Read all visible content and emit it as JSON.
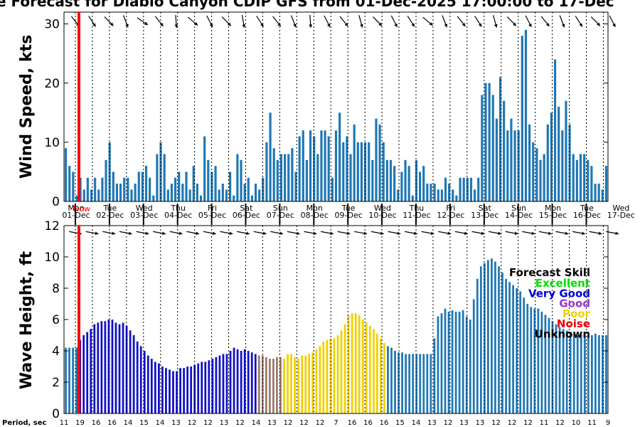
{
  "title": "e Forecast for Diablo Canyon CDIP GFS from 01-Dec-2025 17:00:00 to 17-Dec",
  "wind_panel": {
    "ylabel": "Wind Speed, kts",
    "yticks": [
      "0",
      "10",
      "20",
      "30"
    ]
  },
  "wave_panel": {
    "ylabel": "Wave Height, ft",
    "yticks": [
      "0",
      "2",
      "4",
      "6",
      "8",
      "10",
      "12"
    ]
  },
  "days": [
    {
      "name": "Mon",
      "date": "01-Dec"
    },
    {
      "name": "Tue",
      "date": "02-Dec"
    },
    {
      "name": "Wed",
      "date": "03-Dec"
    },
    {
      "name": "Thu",
      "date": "04-Dec"
    },
    {
      "name": "Fri",
      "date": "05-Dec"
    },
    {
      "name": "Sat",
      "date": "06-Dec"
    },
    {
      "name": "Sun",
      "date": "07-Dec"
    },
    {
      "name": "Mon",
      "date": "08-Dec"
    },
    {
      "name": "Tue",
      "date": "09-Dec"
    },
    {
      "name": "Wed",
      "date": "10-Dec"
    },
    {
      "name": "Thu",
      "date": "11-Dec"
    },
    {
      "name": "Fri",
      "date": "12-Dec"
    },
    {
      "name": "Sat",
      "date": "13-Dec"
    },
    {
      "name": "Sun",
      "date": "14-Dec"
    },
    {
      "name": "Mon",
      "date": "15-Dec"
    },
    {
      "name": "Tue",
      "date": "16-Dec"
    },
    {
      "name": "Wed",
      "date": "17-Dec"
    }
  ],
  "now_label": "Now",
  "period": {
    "label": "Period, sec",
    "values": [
      "11",
      "19",
      "16",
      "16",
      "14",
      "15",
      "14",
      "13",
      "12",
      "12",
      "13",
      "12",
      "14",
      "13",
      "12",
      "12",
      "12",
      "7",
      "16",
      "16",
      "16",
      "15",
      "14",
      "13",
      "12",
      "13",
      "13",
      "12",
      "12",
      "12",
      "11",
      "12",
      "10",
      "11",
      "9"
    ]
  },
  "skill_legend": {
    "title": "Forecast Skill",
    "items": [
      {
        "label": "Excellent",
        "color": "#00dd00"
      },
      {
        "label": "Very Good",
        "color": "#0000dd"
      },
      {
        "label": "Good",
        "color": "#9933cc"
      },
      {
        "label": "Poor",
        "color": "#f0d000"
      },
      {
        "label": "Noise",
        "color": "#ee0000"
      },
      {
        "label": "Unknown",
        "color": "#000000"
      }
    ]
  },
  "colors": {
    "wind": "#1f77b4",
    "very_good": "#1010c8",
    "good": "#9a7a6a",
    "poor": "#f0d000",
    "unknown": "#1f77b4",
    "now_line": "#ff0000"
  },
  "chart_data": [
    {
      "type": "bar",
      "name": "wind",
      "ylabel": "Wind Speed, kts",
      "ylim": [
        0,
        32
      ],
      "x_start": "01-Dec-2025 17:00:00",
      "x_step_hours": 3,
      "values": [
        9,
        6,
        5,
        1,
        4,
        2,
        4,
        2,
        4,
        2,
        4,
        7,
        10,
        5,
        3,
        3,
        4,
        4,
        2,
        3,
        5,
        5,
        6,
        4,
        1,
        8,
        10,
        8,
        2,
        3,
        4,
        5,
        3,
        5,
        2,
        6,
        3,
        1,
        11,
        7,
        5,
        6,
        2,
        3,
        2,
        5,
        1,
        8,
        7,
        3,
        4,
        1,
        3,
        2,
        4,
        10,
        15,
        9,
        7,
        8,
        8,
        8,
        9,
        5,
        11,
        12,
        7,
        12,
        11,
        8,
        12,
        12,
        11,
        4,
        12,
        15,
        10,
        11,
        8,
        13,
        10,
        10,
        10,
        10,
        7,
        14,
        13,
        10,
        7,
        7,
        6,
        2,
        5,
        7,
        6,
        1,
        7,
        5,
        6,
        3,
        3,
        3,
        2,
        2,
        4,
        3,
        2,
        1,
        4,
        4,
        4,
        4,
        2,
        4,
        18,
        20,
        20,
        18,
        14,
        21,
        17,
        12,
        14,
        12,
        12,
        28,
        29,
        13,
        10,
        9,
        7,
        8,
        13,
        15,
        24,
        16,
        12,
        17,
        13,
        8,
        7,
        8,
        8,
        7,
        6,
        3,
        3,
        2,
        6
      ],
      "arrow_row": "wind direction arrows"
    },
    {
      "type": "bar",
      "name": "wave",
      "ylabel": "Wave Height, ft",
      "ylim": [
        0,
        12
      ],
      "x_start": "01-Dec-2025 17:00:00",
      "x_step_hours": 3,
      "values": [
        4.2,
        4.2,
        4.2,
        4.2,
        4.7,
        5.0,
        5.2,
        5.4,
        5.7,
        5.8,
        5.9,
        5.9,
        6.0,
        6.0,
        5.8,
        5.7,
        5.8,
        5.6,
        5.3,
        5.0,
        4.6,
        4.3,
        4.0,
        3.7,
        3.5,
        3.3,
        3.2,
        3.0,
        2.9,
        2.8,
        2.7,
        2.7,
        2.9,
        2.9,
        3.0,
        3.0,
        3.1,
        3.2,
        3.3,
        3.3,
        3.4,
        3.5,
        3.6,
        3.7,
        3.8,
        3.8,
        4.0,
        4.2,
        4.1,
        4.0,
        4.1,
        4.0,
        3.9,
        3.8,
        3.7,
        3.7,
        3.6,
        3.5,
        3.5,
        3.6,
        3.6,
        3.5,
        3.8,
        3.8,
        3.6,
        3.5,
        3.7,
        3.7,
        3.8,
        3.9,
        4.1,
        4.3,
        4.6,
        4.7,
        4.8,
        4.8,
        5.0,
        5.3,
        5.7,
        6.3,
        6.4,
        6.4,
        6.3,
        6.0,
        5.8,
        5.6,
        5.4,
        5.1,
        4.8,
        4.5,
        4.3,
        4.2,
        4.0,
        3.9,
        3.9,
        3.8,
        3.8,
        3.8,
        3.8,
        3.8,
        3.8,
        3.8,
        3.8,
        4.8,
        6.2,
        6.4,
        6.7,
        6.5,
        6.6,
        6.5,
        6.5,
        6.6,
        6.2,
        6.0,
        7.3,
        8.6,
        9.4,
        9.6,
        9.8,
        9.9,
        9.7,
        9.4,
        9.0,
        8.6,
        8.4,
        8.2,
        8.0,
        7.8,
        7.4,
        7.0,
        6.8,
        6.7,
        6.7,
        6.5,
        6.3,
        6.1,
        5.9,
        5.7,
        5.5,
        5.4,
        5.3,
        5.2,
        5.1,
        5.0,
        5.0,
        5.0,
        5.0,
        5.0,
        5.1,
        5.0,
        5.0,
        5.0
      ],
      "skill": [
        "unknown",
        "unknown",
        "unknown",
        "unknown",
        "very_good",
        "very_good",
        "very_good",
        "very_good",
        "very_good",
        "very_good",
        "very_good",
        "very_good",
        "very_good",
        "very_good",
        "very_good",
        "very_good",
        "very_good",
        "very_good",
        "very_good",
        "very_good",
        "very_good",
        "very_good",
        "very_good",
        "very_good",
        "very_good",
        "very_good",
        "very_good",
        "very_good",
        "very_good",
        "very_good",
        "very_good",
        "very_good",
        "very_good",
        "very_good",
        "very_good",
        "very_good",
        "very_good",
        "very_good",
        "very_good",
        "very_good",
        "very_good",
        "very_good",
        "very_good",
        "very_good",
        "very_good",
        "very_good",
        "very_good",
        "very_good",
        "very_good",
        "very_good",
        "very_good",
        "very_good",
        "very_good",
        "very_good",
        "good",
        "good",
        "good",
        "good",
        "good",
        "good",
        "good",
        "poor",
        "poor",
        "poor",
        "poor",
        "poor",
        "poor",
        "poor",
        "poor",
        "poor",
        "poor",
        "poor",
        "poor",
        "poor",
        "poor",
        "poor",
        "poor",
        "poor",
        "poor",
        "poor",
        "poor",
        "poor",
        "poor",
        "poor",
        "poor",
        "poor",
        "poor",
        "poor",
        "poor",
        "poor",
        "unknown",
        "unknown",
        "unknown",
        "unknown",
        "unknown",
        "unknown",
        "unknown",
        "unknown",
        "unknown",
        "unknown",
        "unknown",
        "unknown",
        "unknown",
        "unknown",
        "unknown",
        "unknown",
        "unknown",
        "unknown",
        "unknown",
        "unknown",
        "unknown",
        "unknown",
        "unknown",
        "unknown",
        "unknown",
        "unknown",
        "unknown",
        "unknown",
        "unknown",
        "unknown",
        "unknown",
        "unknown",
        "unknown",
        "unknown",
        "unknown",
        "unknown",
        "unknown",
        "unknown",
        "unknown",
        "unknown",
        "unknown",
        "unknown",
        "unknown",
        "unknown",
        "unknown",
        "unknown",
        "unknown",
        "unknown",
        "unknown",
        "unknown",
        "unknown",
        "unknown",
        "unknown",
        "unknown",
        "unknown",
        "unknown",
        "unknown",
        "unknown",
        "unknown",
        "unknown"
      ]
    }
  ]
}
